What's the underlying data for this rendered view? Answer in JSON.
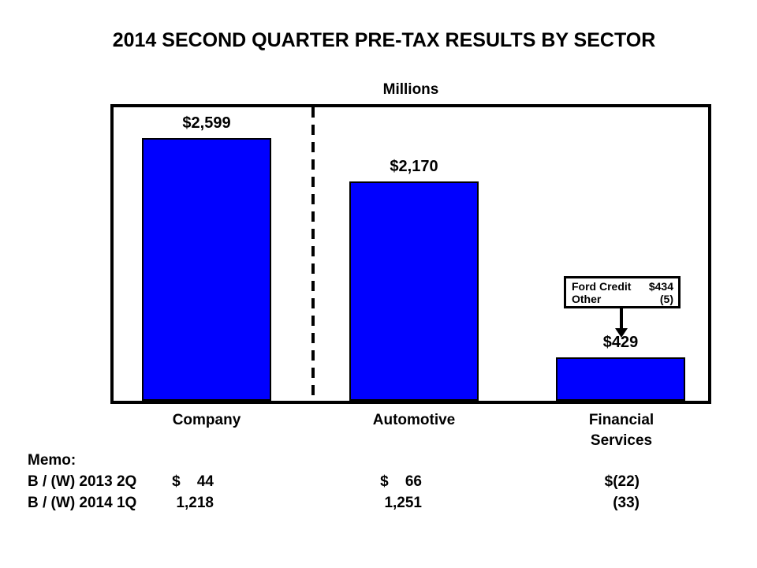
{
  "chart_data": {
    "type": "bar",
    "title": "2014 SECOND QUARTER PRE-TAX RESULTS BY SECTOR",
    "units_label": "Millions",
    "categories": [
      "Company",
      "Automotive",
      "Financial\nServices"
    ],
    "values": [
      2599,
      2170,
      429
    ],
    "value_labels": [
      "$2,599",
      "$2,170",
      "$429"
    ],
    "ylim": [
      0,
      2900
    ],
    "bar_color": "#0000FF",
    "grid": false,
    "legend": "none",
    "separator_after_first_bar": true
  },
  "callout": {
    "rows": [
      {
        "label": "Ford Credit",
        "value": "$434"
      },
      {
        "label": "Other",
        "value": "(5)"
      }
    ]
  },
  "memo": {
    "heading": "Memo:",
    "rows": [
      {
        "label": "B / (W) 2013 2Q",
        "values": [
          "$    44",
          "$    66",
          "$(22)"
        ]
      },
      {
        "label": "B / (W) 2014 1Q",
        "values": [
          "1,218",
          "1,251",
          "(33)"
        ]
      }
    ]
  }
}
